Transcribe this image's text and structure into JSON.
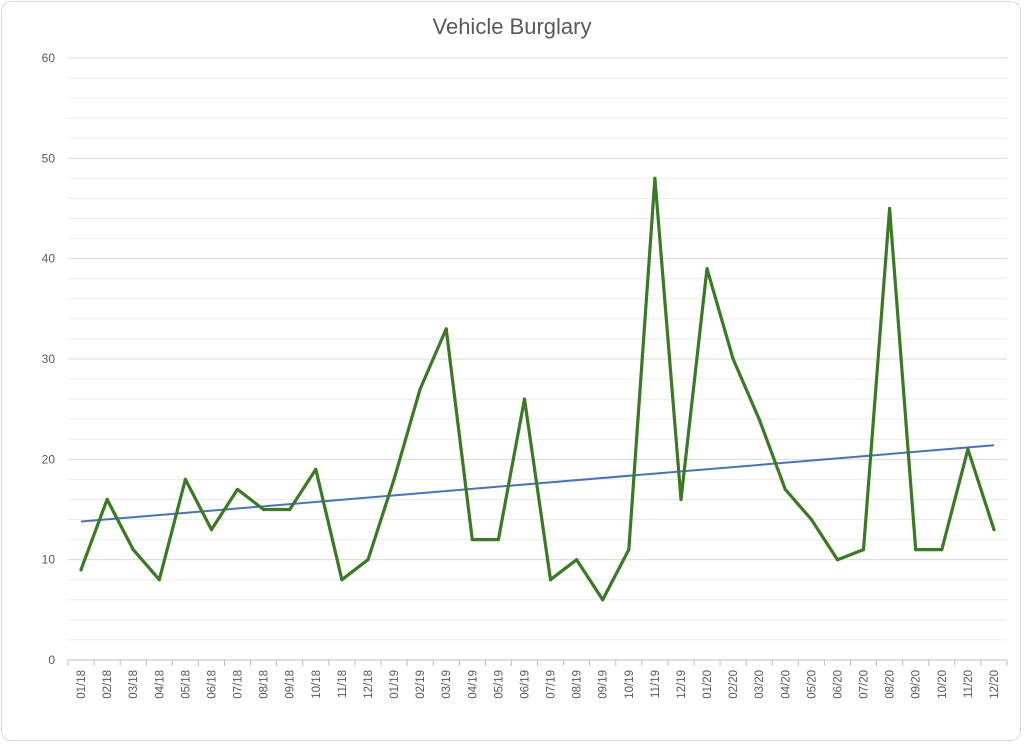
{
  "chart_data": {
    "type": "line",
    "title": "Vehicle Burglary",
    "xlabel": "",
    "ylabel": "",
    "ylim": [
      0,
      60
    ],
    "yticks": [
      0,
      10,
      20,
      30,
      40,
      50,
      60
    ],
    "minor_gridline_step": 2,
    "grid": true,
    "legend": "none",
    "categories": [
      "01/18",
      "02/18",
      "03/18",
      "04/18",
      "05/18",
      "06/18",
      "07/18",
      "08/18",
      "09/18",
      "10/18",
      "11/18",
      "12/18",
      "01/19",
      "02/19",
      "03/19",
      "04/19",
      "05/19",
      "06/19",
      "07/19",
      "08/19",
      "09/19",
      "10/19",
      "11/19",
      "12/19",
      "01/20",
      "02/20",
      "03/20",
      "04/20",
      "05/20",
      "06/20",
      "07/20",
      "08/20",
      "09/20",
      "10/20",
      "11/20",
      "12/20"
    ],
    "series": [
      {
        "values": [
          9,
          16,
          11,
          8,
          18,
          13,
          17,
          15,
          15,
          19,
          8,
          10,
          18,
          27,
          33,
          12,
          12,
          26,
          8,
          10,
          6,
          11,
          48,
          16,
          39,
          30,
          24,
          17,
          14,
          10,
          11,
          45,
          11,
          11,
          21,
          13
        ],
        "color": "#3a7a23"
      }
    ],
    "trendline": {
      "type": "linear",
      "start": 13.8,
      "end": 21.4,
      "color": "#4472c4"
    }
  }
}
